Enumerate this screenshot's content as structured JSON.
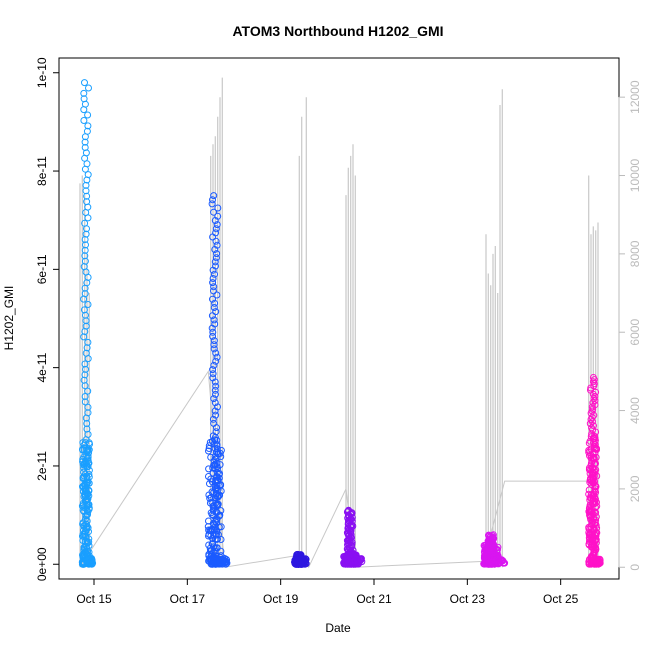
{
  "chart_data": {
    "type": "scatter",
    "title": "ATOM3 Northbound H1202_GMI",
    "xlabel": "Date",
    "ylabel": "H1202_GMI",
    "x_ticks": [
      "Oct 15",
      "Oct 17",
      "Oct 19",
      "Oct 21",
      "Oct 23",
      "Oct 25"
    ],
    "x_tick_days": [
      15,
      17,
      19,
      21,
      23,
      25
    ],
    "xlim_days": [
      14.25,
      26.25
    ],
    "y_ticks": [
      "0e+00",
      "2e-11",
      "4e-11",
      "6e-11",
      "8e-11",
      "1e-10"
    ],
    "y_tick_values": [
      0,
      2e-11,
      4e-11,
      6e-11,
      8e-11,
      1e-10
    ],
    "ylim": [
      -3e-12,
      1.03e-10
    ],
    "y2_ticks": [
      "0",
      "2000",
      "4000",
      "6000",
      "8000",
      "10000",
      "12000"
    ],
    "y2_tick_values": [
      0,
      2000,
      4000,
      6000,
      8000,
      10000,
      12000
    ],
    "y2lim": [
      -300,
      13000
    ],
    "grid": false,
    "colors": {
      "secondary_line": "#c8c8c8",
      "secondary_axis": "#bbbbbb",
      "axis": "#000000"
    },
    "series": [
      {
        "day_start": 14.75,
        "day_end": 14.97,
        "y_min": 0,
        "y_max": 9.8e-11,
        "core_top": 2.5e-11,
        "color": "#1a9fff"
      },
      {
        "day_start": 17.45,
        "day_end": 17.85,
        "y_min": 0,
        "y_max": 7.5e-11,
        "core_top": 2.6e-11,
        "color": "#1b5bff"
      },
      {
        "day_start": 19.3,
        "day_end": 19.55,
        "y_min": 0,
        "y_max": 2e-12,
        "core_top": 1e-12,
        "color": "#2d17e0"
      },
      {
        "day_start": 20.35,
        "day_end": 20.75,
        "y_min": 0,
        "y_max": 1.1e-11,
        "core_top": 2e-12,
        "color": "#8a10f2"
      },
      {
        "day_start": 23.35,
        "day_end": 23.8,
        "y_min": 0,
        "y_max": 6e-12,
        "core_top": 4e-12,
        "color": "#d916f0"
      },
      {
        "day_start": 25.6,
        "day_end": 25.85,
        "y_min": 0,
        "y_max": 3.8e-11,
        "core_top": 2.6e-11,
        "color": "#ff12c8"
      }
    ],
    "secondary_series": {
      "axis": "right",
      "trend_points": [
        [
          14.75,
          100
        ],
        [
          17.45,
          5000
        ],
        [
          17.8,
          0
        ],
        [
          19.35,
          300
        ],
        [
          19.6,
          0
        ],
        [
          20.4,
          2000
        ],
        [
          20.6,
          0
        ],
        [
          23.35,
          150
        ],
        [
          23.8,
          2200
        ],
        [
          25.6,
          2200
        ]
      ],
      "spikes": [
        [
          14.7,
          9800
        ],
        [
          14.75,
          10000
        ],
        [
          14.8,
          9500
        ],
        [
          14.85,
          8000
        ],
        [
          14.9,
          7000
        ],
        [
          17.5,
          10500
        ],
        [
          17.55,
          10800
        ],
        [
          17.6,
          11000
        ],
        [
          17.65,
          11500
        ],
        [
          17.7,
          12000
        ],
        [
          17.75,
          12500
        ],
        [
          19.4,
          10500
        ],
        [
          19.45,
          11500
        ],
        [
          19.55,
          12000
        ],
        [
          20.4,
          9500
        ],
        [
          20.45,
          10200
        ],
        [
          20.5,
          10500
        ],
        [
          20.55,
          10800
        ],
        [
          20.6,
          10000
        ],
        [
          23.4,
          8500
        ],
        [
          23.45,
          7500
        ],
        [
          23.5,
          7200
        ],
        [
          23.55,
          8000
        ],
        [
          23.6,
          8200
        ],
        [
          23.65,
          7000
        ],
        [
          23.7,
          11800
        ],
        [
          23.75,
          12200
        ],
        [
          25.6,
          10000
        ],
        [
          25.65,
          8500
        ],
        [
          25.7,
          8700
        ],
        [
          25.75,
          8600
        ],
        [
          25.8,
          8800
        ]
      ]
    }
  }
}
